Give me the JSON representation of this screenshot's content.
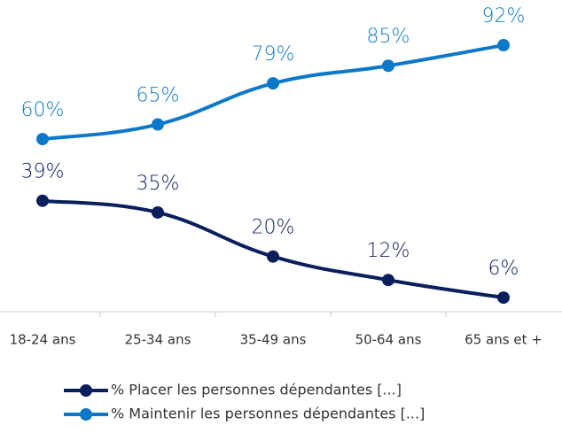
{
  "chart_data": {
    "type": "line",
    "categories": [
      "18-24 ans",
      "25-34 ans",
      "35-49 ans",
      "50-64 ans",
      "65 ans et +"
    ],
    "series": [
      {
        "name": "% Placer les personnes dépendantes [...]",
        "color": "#0b1f5c",
        "values": [
          39,
          35,
          20,
          12,
          6
        ],
        "value_labels": [
          "39%",
          "35%",
          "20%",
          "12%",
          "6%"
        ]
      },
      {
        "name": "% Maintenir les personnes dépendantes [...]",
        "color": "#0e78c8",
        "values": [
          60,
          65,
          79,
          85,
          92
        ],
        "value_labels": [
          "60%",
          "65%",
          "79%",
          "85%",
          "92%"
        ]
      }
    ],
    "ylim": [
      0,
      108
    ]
  }
}
